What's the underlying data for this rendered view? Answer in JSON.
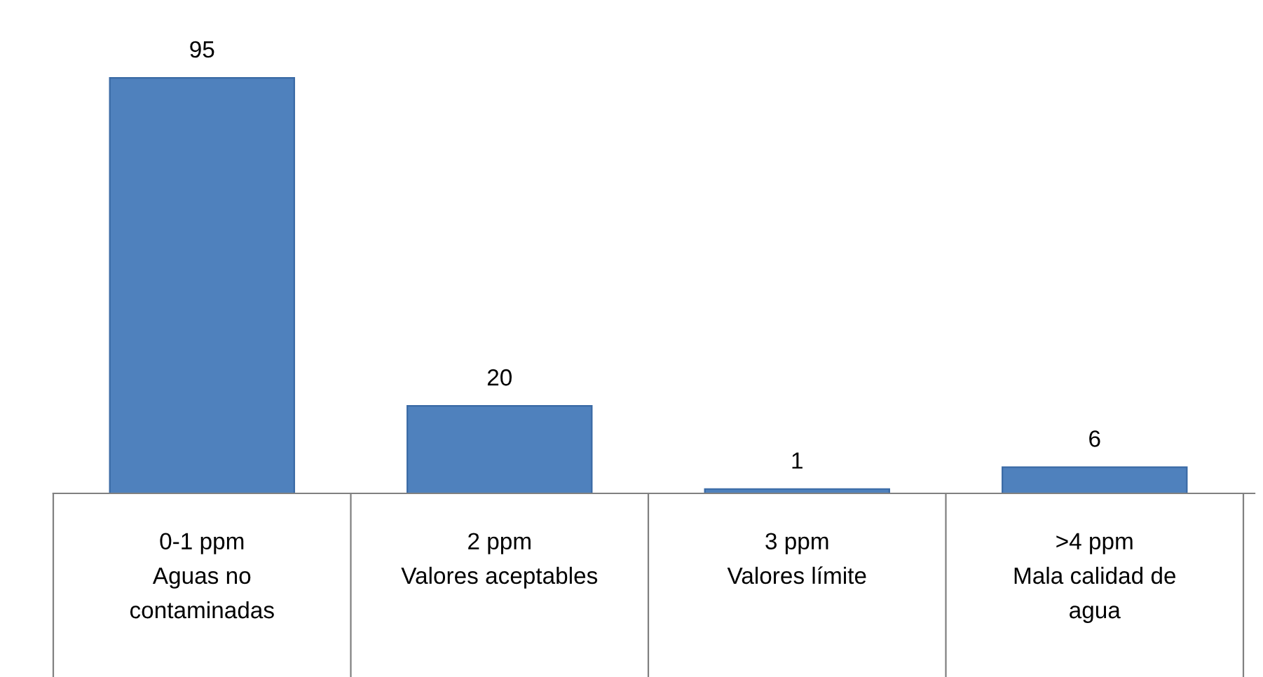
{
  "chart_data": {
    "type": "bar",
    "categories": [
      "0-1 ppm\nAguas no\ncontaminadas",
      "2 ppm\nValores aceptables",
      "3 ppm\nValores límite",
      ">4 ppm\nMala calidad de\nagua"
    ],
    "values": [
      95,
      20,
      1,
      6
    ],
    "color": "#4f81bd",
    "data_labels": true,
    "grid": false,
    "legend": false
  }
}
